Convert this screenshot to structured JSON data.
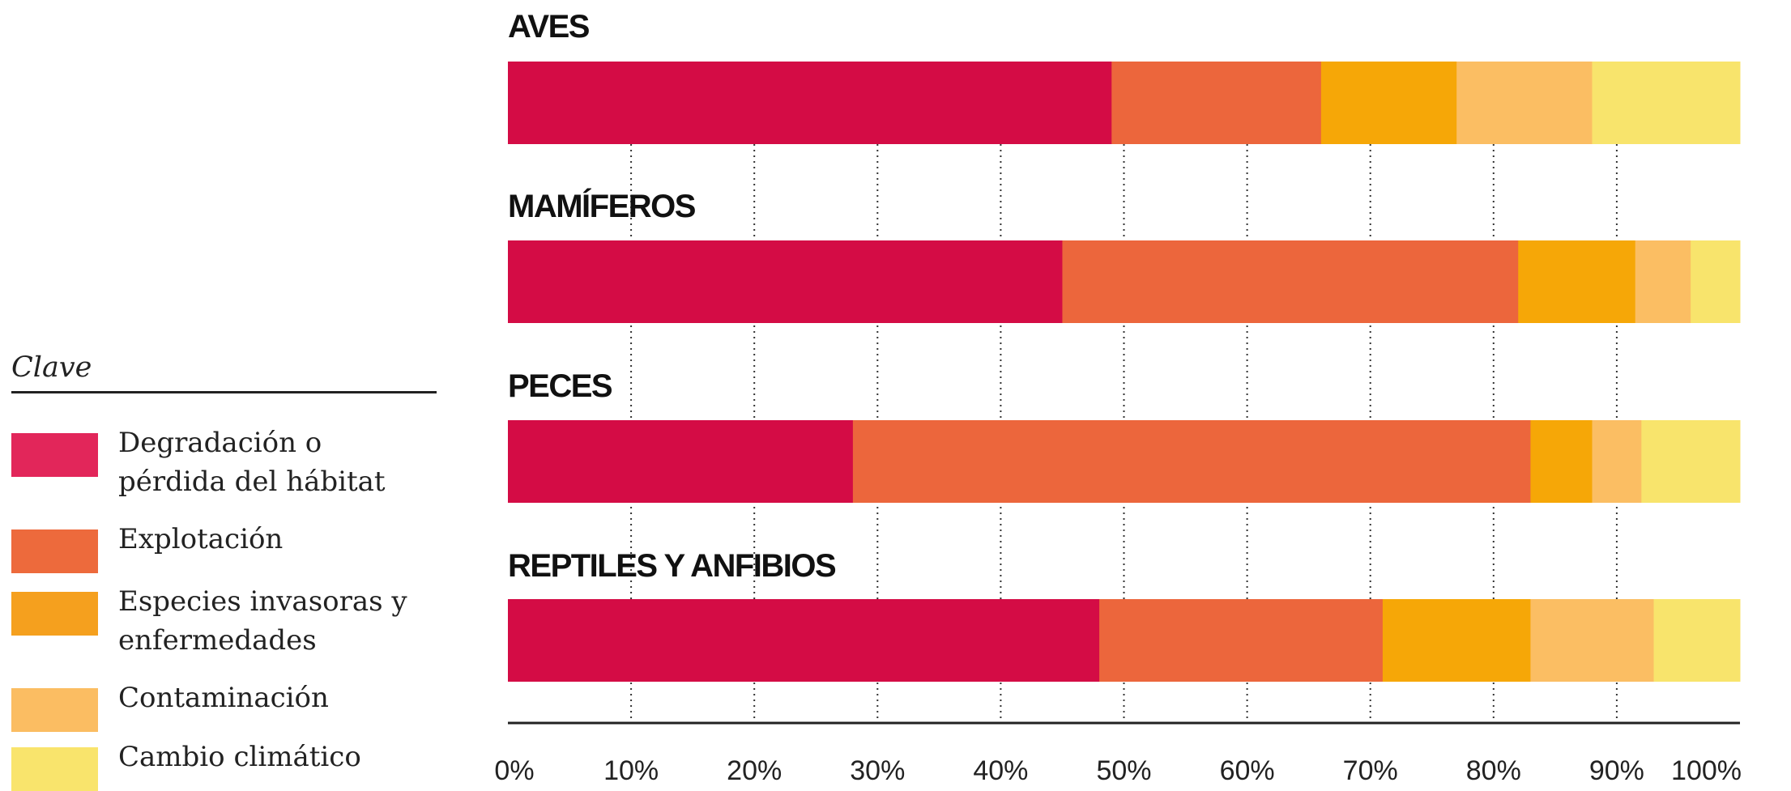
{
  "legend": {
    "title": "Clave",
    "items": [
      {
        "label": "Degradación o\npérdida del hábitat",
        "color": "#e2265a"
      },
      {
        "label": "Explotación",
        "color": "#ed6a3c"
      },
      {
        "label": "Especies invasoras y\nenfermedades",
        "color": "#f5a01e"
      },
      {
        "label": "Contaminación",
        "color": "#fbbd62"
      },
      {
        "label": "Cambio climático",
        "color": "#f9e46c"
      }
    ]
  },
  "chart_data": {
    "type": "bar",
    "orientation": "horizontal",
    "stacked": true,
    "categories": [
      "AVES",
      "MAMÍFEROS",
      "PECES",
      "REPTILES Y ANFIBIOS"
    ],
    "series": [
      {
        "name": "Degradación o pérdida del hábitat",
        "color": "#d40c45",
        "values": [
          49,
          45,
          28,
          48
        ]
      },
      {
        "name": "Explotación",
        "color": "#ec663c",
        "values": [
          17,
          37,
          55,
          23
        ]
      },
      {
        "name": "Especies invasoras y enfermedades",
        "color": "#f6a707",
        "values": [
          11,
          9.5,
          5,
          12
        ]
      },
      {
        "name": "Contaminación",
        "color": "#fbbe63",
        "values": [
          11,
          4.5,
          4,
          10
        ]
      },
      {
        "name": "Cambio climático",
        "color": "#f8e46c",
        "values": [
          12,
          4,
          8,
          7
        ]
      }
    ],
    "xlim": [
      0,
      100
    ],
    "xticks": [
      "0%",
      "10%",
      "20%",
      "30%",
      "40%",
      "50%",
      "60%",
      "70%",
      "80%",
      "90%",
      "100%"
    ],
    "grid": "vertical dotted"
  }
}
